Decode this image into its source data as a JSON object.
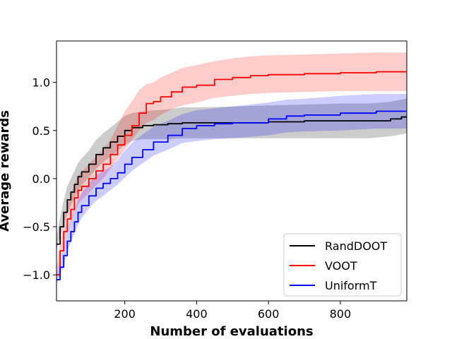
{
  "chart_data": {
    "type": "line",
    "title": "",
    "xlabel": "Number of evaluations",
    "ylabel": "Average rewards",
    "xlim": [
      10,
      985
    ],
    "ylim": [
      -1.27,
      1.43
    ],
    "xticks": [
      200,
      400,
      600,
      800
    ],
    "yticks": [
      -1.0,
      -0.5,
      0.0,
      0.5,
      1.0
    ],
    "xtick_labels": [
      "200",
      "400",
      "600",
      "800"
    ],
    "ytick_labels": [
      "−1.0",
      "−0.5",
      "0.0",
      "0.5",
      "1.0"
    ],
    "grid": false,
    "legend_position": "lower-right",
    "series": [
      {
        "name": "RandDOOT",
        "color": "#000000",
        "band_color": "#808080",
        "band_opacity": 0.4,
        "x": [
          10,
          20,
          30,
          40,
          50,
          60,
          70,
          80,
          100,
          120,
          140,
          160,
          180,
          200,
          220,
          250,
          280,
          320,
          360,
          400,
          500,
          600,
          700,
          800,
          880,
          940,
          970,
          985
        ],
        "y": [
          -0.68,
          -0.5,
          -0.35,
          -0.22,
          -0.14,
          -0.06,
          0.02,
          0.07,
          0.15,
          0.25,
          0.32,
          0.38,
          0.44,
          0.5,
          0.53,
          0.55,
          0.56,
          0.57,
          0.58,
          0.58,
          0.58,
          0.59,
          0.6,
          0.6,
          0.6,
          0.62,
          0.64,
          0.65
        ],
        "lower": [
          -0.75,
          -0.6,
          -0.47,
          -0.36,
          -0.28,
          -0.2,
          -0.12,
          -0.07,
          0.01,
          0.1,
          0.17,
          0.23,
          0.29,
          0.35,
          0.39,
          0.41,
          0.41,
          0.41,
          0.42,
          0.42,
          0.42,
          0.42,
          0.42,
          0.42,
          0.42,
          0.44,
          0.46,
          0.47
        ],
        "upper": [
          -0.6,
          -0.4,
          -0.23,
          -0.08,
          0.0,
          0.08,
          0.16,
          0.21,
          0.29,
          0.4,
          0.47,
          0.53,
          0.59,
          0.65,
          0.68,
          0.7,
          0.71,
          0.72,
          0.74,
          0.74,
          0.75,
          0.76,
          0.77,
          0.78,
          0.78,
          0.8,
          0.82,
          0.83
        ]
      },
      {
        "name": "VOOT",
        "color": "#ff0000",
        "band_color": "#ff0000",
        "band_opacity": 0.2,
        "x": [
          10,
          20,
          30,
          40,
          50,
          60,
          70,
          80,
          100,
          120,
          140,
          160,
          180,
          200,
          220,
          240,
          260,
          280,
          300,
          330,
          360,
          400,
          450,
          500,
          550,
          600,
          700,
          800,
          900,
          985
        ],
        "y": [
          -1.0,
          -0.75,
          -0.55,
          -0.42,
          -0.32,
          -0.2,
          -0.12,
          -0.08,
          0.0,
          0.08,
          0.15,
          0.25,
          0.35,
          0.45,
          0.55,
          0.68,
          0.78,
          0.8,
          0.85,
          0.9,
          0.95,
          0.97,
          1.03,
          1.05,
          1.07,
          1.08,
          1.09,
          1.1,
          1.11,
          1.11
        ],
        "lower": [
          -1.05,
          -0.85,
          -0.68,
          -0.56,
          -0.46,
          -0.35,
          -0.27,
          -0.22,
          -0.15,
          -0.07,
          0.0,
          0.1,
          0.2,
          0.3,
          0.4,
          0.5,
          0.58,
          0.61,
          0.66,
          0.72,
          0.76,
          0.79,
          0.84,
          0.86,
          0.88,
          0.89,
          0.9,
          0.91,
          0.91,
          0.91
        ],
        "upper": [
          -0.95,
          -0.65,
          -0.42,
          -0.28,
          -0.18,
          -0.05,
          0.03,
          0.07,
          0.15,
          0.23,
          0.3,
          0.4,
          0.55,
          0.7,
          0.8,
          0.92,
          0.98,
          1.0,
          1.05,
          1.1,
          1.15,
          1.18,
          1.22,
          1.25,
          1.27,
          1.28,
          1.29,
          1.3,
          1.31,
          1.31
        ]
      },
      {
        "name": "UniformT",
        "color": "#0000ff",
        "band_color": "#0000ff",
        "band_opacity": 0.2,
        "x": [
          10,
          20,
          30,
          40,
          50,
          60,
          70,
          80,
          100,
          120,
          140,
          160,
          180,
          200,
          220,
          250,
          280,
          320,
          360,
          400,
          450,
          500,
          600,
          650,
          700,
          800,
          900,
          985
        ],
        "y": [
          -1.05,
          -0.92,
          -0.8,
          -0.65,
          -0.55,
          -0.45,
          -0.35,
          -0.28,
          -0.18,
          -0.1,
          -0.05,
          0.0,
          0.06,
          0.15,
          0.22,
          0.3,
          0.38,
          0.45,
          0.52,
          0.55,
          0.57,
          0.58,
          0.62,
          0.65,
          0.66,
          0.68,
          0.7,
          0.7
        ],
        "lower": [
          -1.1,
          -1.0,
          -0.9,
          -0.76,
          -0.66,
          -0.57,
          -0.48,
          -0.41,
          -0.31,
          -0.23,
          -0.18,
          -0.12,
          -0.06,
          0.01,
          0.08,
          0.16,
          0.24,
          0.3,
          0.37,
          0.39,
          0.41,
          0.42,
          0.45,
          0.48,
          0.49,
          0.5,
          0.52,
          0.52
        ],
        "upper": [
          -1.0,
          -0.84,
          -0.7,
          -0.54,
          -0.44,
          -0.33,
          -0.22,
          -0.15,
          -0.05,
          0.03,
          0.08,
          0.12,
          0.19,
          0.29,
          0.37,
          0.46,
          0.54,
          0.6,
          0.67,
          0.71,
          0.73,
          0.75,
          0.79,
          0.82,
          0.83,
          0.86,
          0.88,
          0.88
        ]
      }
    ]
  }
}
